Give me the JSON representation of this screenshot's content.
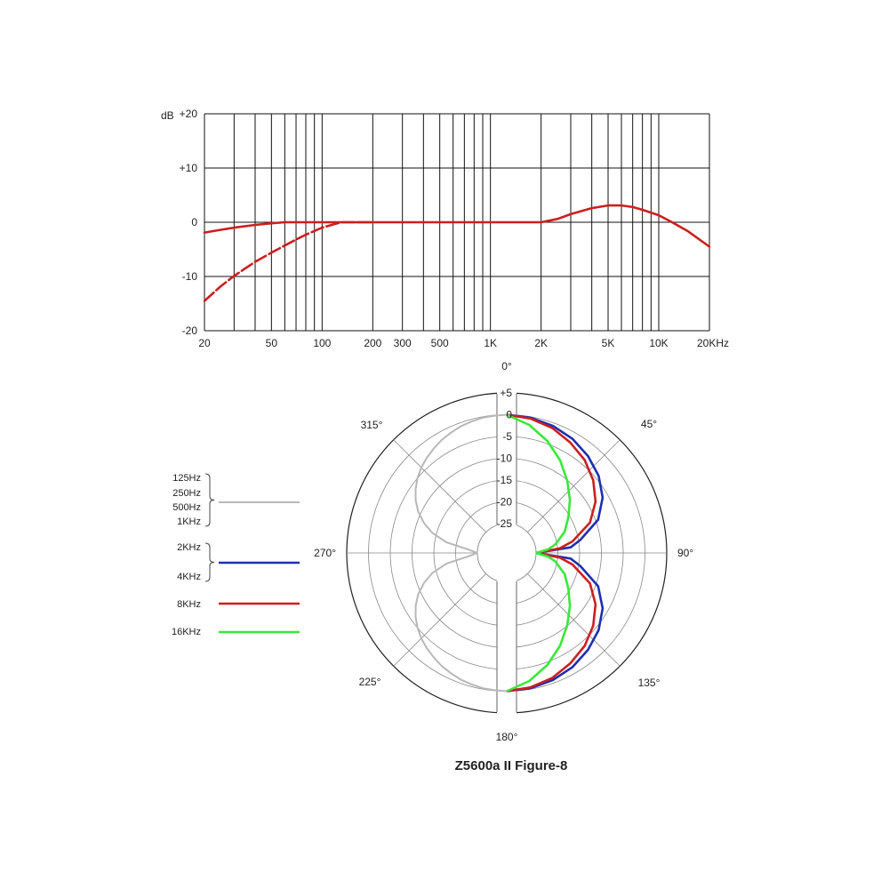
{
  "chart_data": [
    {
      "type": "line",
      "x_scale": "log",
      "ylabel": "dB",
      "ylim": [
        -20,
        20
      ],
      "xlim": [
        20,
        20000
      ],
      "grid": true,
      "y_ticks": [
        {
          "value": 20,
          "label": "+20"
        },
        {
          "value": 10,
          "label": "+10"
        },
        {
          "value": 0,
          "label": "0"
        },
        {
          "value": -10,
          "label": "-10"
        },
        {
          "value": -20,
          "label": "-20"
        }
      ],
      "x_ticks": [
        {
          "value": 20,
          "label": "20"
        },
        {
          "value": 50,
          "label": "50"
        },
        {
          "value": 100,
          "label": "100"
        },
        {
          "value": 200,
          "label": "200"
        },
        {
          "value": 300,
          "label": "300"
        },
        {
          "value": 500,
          "label": "500"
        },
        {
          "value": 1000,
          "label": "1K"
        },
        {
          "value": 2000,
          "label": "2K"
        },
        {
          "value": 5000,
          "label": "5K"
        },
        {
          "value": 10000,
          "label": "10K"
        },
        {
          "value": 20000,
          "label": "20KHz"
        }
      ],
      "series": [
        {
          "style": "solid",
          "color": "#cc1f1f",
          "x": [
            20,
            25,
            30,
            40,
            50,
            60,
            80,
            100,
            130,
            200,
            500,
            1000,
            1500,
            2000,
            2500,
            3000,
            4000,
            5000,
            6000,
            7000,
            8000,
            10000,
            12000,
            15000,
            20000
          ],
          "y": [
            -1.9,
            -1.4,
            -1.0,
            -0.5,
            -0.2,
            0,
            0,
            0,
            0,
            0,
            0,
            0,
            0,
            0,
            0.6,
            1.5,
            2.6,
            3.1,
            3.1,
            2.8,
            2.3,
            1.3,
            0,
            -1.7,
            -4.5
          ]
        },
        {
          "style": "dashed",
          "color": "#cc1f1f",
          "x": [
            20,
            25,
            30,
            40,
            50,
            60,
            70,
            80,
            90,
            100,
            120,
            130,
            150,
            200
          ],
          "y": [
            -14.5,
            -11.8,
            -9.9,
            -7.3,
            -5.6,
            -4.3,
            -3.2,
            -2.3,
            -1.6,
            -1.0,
            -0.3,
            0,
            0,
            0
          ]
        }
      ]
    },
    {
      "type": "polar",
      "title": "Z5600a II Figure-8",
      "angle_labels": [
        {
          "angle": 0,
          "label": "0°"
        },
        {
          "angle": 45,
          "label": "45°"
        },
        {
          "angle": 90,
          "label": "90°"
        },
        {
          "angle": 135,
          "label": "135°"
        },
        {
          "angle": 180,
          "label": "180°"
        },
        {
          "angle": 225,
          "label": "225°"
        },
        {
          "angle": 270,
          "label": "270°"
        },
        {
          "angle": 315,
          "label": "315°"
        }
      ],
      "radial_labels": [
        "+5",
        "0",
        "-5",
        "-10",
        "-15",
        "-20",
        "-25"
      ],
      "radial_values": [
        5,
        0,
        -5,
        -10,
        -15,
        -20,
        -25
      ],
      "series": [
        {
          "legend": [
            "125Hz",
            "250Hz",
            "500Hz",
            "1KHz"
          ],
          "color": "#b8b8b8",
          "angles": [
            270,
            275,
            280,
            285,
            290,
            295,
            300,
            305,
            310,
            315,
            320,
            325,
            330,
            335,
            340,
            345,
            350,
            355,
            360
          ],
          "level_db": [
            -25,
            -22.9,
            -17.7,
            -14.1,
            -11.5,
            -9.3,
            -7.6,
            -6.2,
            -5.0,
            -4.0,
            -3.2,
            -2.5,
            -1.8,
            -1.3,
            -0.8,
            -0.5,
            -0.2,
            -0.1,
            0
          ]
        },
        {
          "legend": [
            "2KHz",
            "4KHz"
          ],
          "color": "#1f2fb0",
          "angles": [
            0,
            10,
            20,
            30,
            40,
            50,
            60,
            70,
            80,
            85,
            90
          ],
          "level_db": [
            0,
            -0.2,
            -0.7,
            -1.5,
            -2.7,
            -4.2,
            -6.3,
            -9.4,
            -14.6,
            -17.0,
            -25
          ]
        },
        {
          "legend": [
            "8KHz"
          ],
          "color": "#cc1f1f",
          "angles": [
            0,
            10,
            20,
            30,
            40,
            50,
            60,
            70,
            80,
            85,
            90
          ],
          "level_db": [
            0,
            -0.4,
            -1.2,
            -2.5,
            -3.9,
            -5.8,
            -8.2,
            -11.4,
            -16.4,
            -19.5,
            -25
          ]
        },
        {
          "legend": [
            "16KHz"
          ],
          "color": "#39e839",
          "angles": [
            0,
            10,
            20,
            30,
            40,
            50,
            60,
            70,
            80,
            85,
            90
          ],
          "level_db": [
            0,
            -1.9,
            -4.4,
            -7.2,
            -10.1,
            -12.8,
            -15.4,
            -17.6,
            -20.4,
            -22.2,
            -25
          ]
        }
      ]
    }
  ]
}
